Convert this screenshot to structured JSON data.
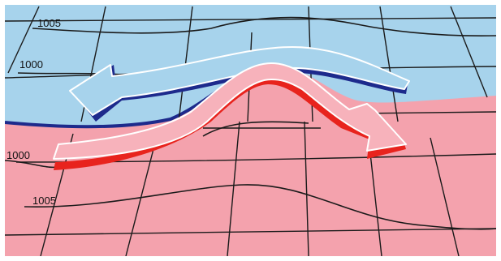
{
  "diagram": {
    "isobar_labels": {
      "top_upper": "1005",
      "top_lower": "1000",
      "bottom_upper": "1000",
      "bottom_lower": "1005"
    },
    "colors": {
      "cold_air": "#a7d3ec",
      "warm_air": "#f4a2ad",
      "cold_front_line": "#1d2a8c",
      "warm_front_line": "#e8231d",
      "cold_arrow_fill": "#a7d3ec",
      "cold_arrow_shadow": "#1d2a8c",
      "warm_arrow_fill": "#f7b2bb",
      "warm_arrow_shadow": "#e8231d",
      "grid_line": "#1a1a1a",
      "border": "#ffffff"
    }
  }
}
